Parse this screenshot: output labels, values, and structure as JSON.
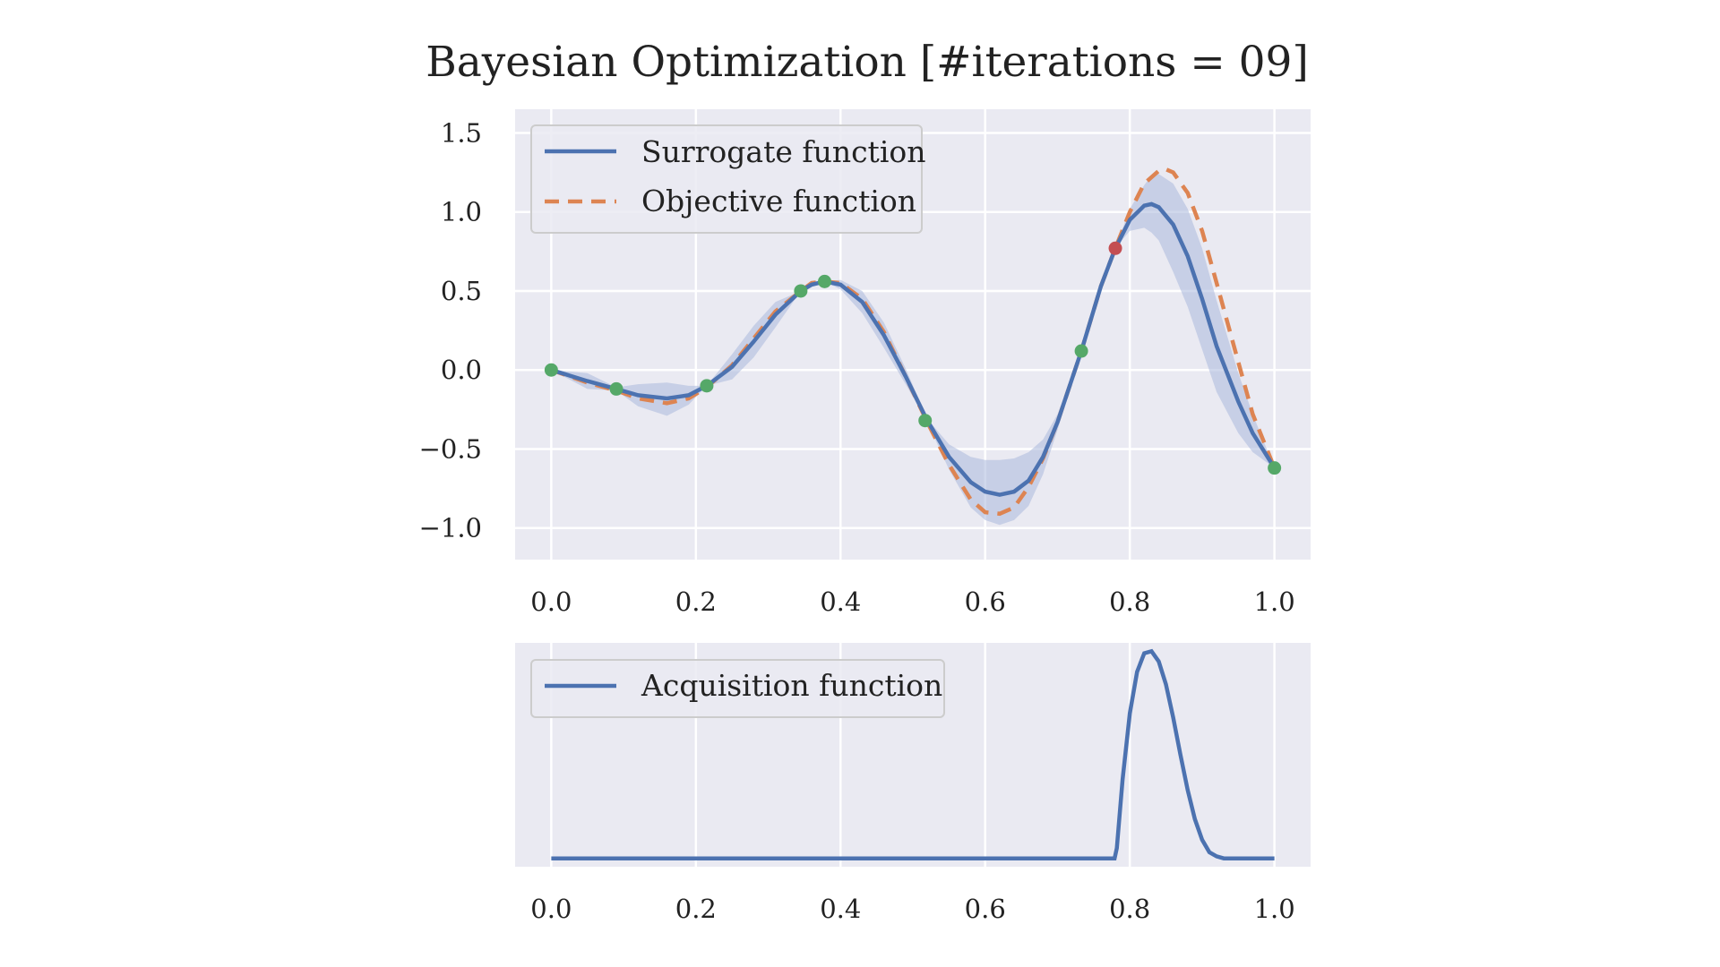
{
  "title": "Bayesian Optimization [#iterations = 09]",
  "colors": {
    "panel_bg": "#eaeaf2",
    "grid": "#ffffff",
    "surrogate": "#4c72b0",
    "objective": "#dd8452",
    "observed": "#55a868",
    "next_sample": "#c44e52",
    "band": "#a9b8dd"
  },
  "chart_data": [
    {
      "type": "line",
      "panel": "top",
      "xlim": [
        -0.05,
        1.05
      ],
      "ylim": [
        -1.2,
        1.65
      ],
      "xticks": [
        "0.0",
        "0.2",
        "0.4",
        "0.6",
        "0.8",
        "1.0"
      ],
      "yticks": [
        "1.5",
        "1.0",
        "0.5",
        "0.0",
        "−0.5",
        "−1.0"
      ],
      "grid": true,
      "legend_position": "upper-left",
      "series": [
        {
          "name": "Surrogate function",
          "style": "solid",
          "x": [
            0.0,
            0.05,
            0.09,
            0.12,
            0.16,
            0.19,
            0.215,
            0.25,
            0.28,
            0.31,
            0.345,
            0.36,
            0.378,
            0.4,
            0.43,
            0.46,
            0.49,
            0.52,
            0.55,
            0.58,
            0.6,
            0.62,
            0.64,
            0.66,
            0.68,
            0.7,
            0.733,
            0.76,
            0.78,
            0.8,
            0.82,
            0.83,
            0.84,
            0.86,
            0.88,
            0.9,
            0.92,
            0.95,
            0.97,
            1.0
          ],
          "y": [
            0.0,
            -0.07,
            -0.12,
            -0.16,
            -0.18,
            -0.16,
            -0.1,
            0.02,
            0.18,
            0.35,
            0.5,
            0.54,
            0.56,
            0.54,
            0.43,
            0.22,
            -0.04,
            -0.32,
            -0.55,
            -0.71,
            -0.77,
            -0.79,
            -0.77,
            -0.7,
            -0.55,
            -0.33,
            0.12,
            0.53,
            0.77,
            0.95,
            1.04,
            1.05,
            1.03,
            0.92,
            0.72,
            0.45,
            0.15,
            -0.2,
            -0.4,
            -0.62
          ]
        },
        {
          "name": "Objective function",
          "style": "dashed",
          "x": [
            0.0,
            0.05,
            0.09,
            0.12,
            0.16,
            0.19,
            0.215,
            0.25,
            0.28,
            0.31,
            0.345,
            0.36,
            0.378,
            0.4,
            0.43,
            0.46,
            0.49,
            0.52,
            0.55,
            0.58,
            0.6,
            0.62,
            0.64,
            0.66,
            0.68,
            0.7,
            0.733,
            0.76,
            0.78,
            0.8,
            0.82,
            0.84,
            0.85,
            0.86,
            0.88,
            0.9,
            0.92,
            0.95,
            0.97,
            1.0
          ],
          "y": [
            0.0,
            -0.08,
            -0.13,
            -0.18,
            -0.21,
            -0.18,
            -0.11,
            0.03,
            0.2,
            0.37,
            0.5,
            0.55,
            0.56,
            0.55,
            0.45,
            0.24,
            -0.04,
            -0.33,
            -0.6,
            -0.82,
            -0.9,
            -0.91,
            -0.87,
            -0.74,
            -0.56,
            -0.33,
            0.12,
            0.53,
            0.77,
            1.0,
            1.18,
            1.26,
            1.27,
            1.25,
            1.12,
            0.88,
            0.55,
            0.05,
            -0.28,
            -0.62
          ]
        }
      ],
      "uncertainty_band": {
        "x": [
          0.0,
          0.05,
          0.09,
          0.12,
          0.16,
          0.19,
          0.215,
          0.25,
          0.28,
          0.31,
          0.345,
          0.36,
          0.378,
          0.4,
          0.43,
          0.46,
          0.49,
          0.52,
          0.55,
          0.58,
          0.6,
          0.62,
          0.64,
          0.66,
          0.68,
          0.7,
          0.733,
          0.76,
          0.78,
          0.8,
          0.82,
          0.83,
          0.84,
          0.86,
          0.88,
          0.9,
          0.92,
          0.95,
          0.97,
          1.0
        ],
        "lower": [
          0.0,
          -0.12,
          -0.13,
          -0.23,
          -0.29,
          -0.22,
          -0.1,
          -0.06,
          0.08,
          0.27,
          0.5,
          0.53,
          0.56,
          0.51,
          0.36,
          0.14,
          -0.09,
          -0.33,
          -0.63,
          -0.87,
          -0.95,
          -0.98,
          -0.95,
          -0.86,
          -0.66,
          -0.38,
          0.12,
          0.51,
          0.77,
          0.88,
          0.9,
          0.87,
          0.82,
          0.62,
          0.4,
          0.13,
          -0.14,
          -0.4,
          -0.52,
          -0.62
        ],
        "upper": [
          0.0,
          -0.02,
          -0.11,
          -0.09,
          -0.08,
          -0.1,
          -0.1,
          0.1,
          0.28,
          0.43,
          0.5,
          0.55,
          0.56,
          0.57,
          0.5,
          0.3,
          0.01,
          -0.31,
          -0.47,
          -0.55,
          -0.57,
          -0.57,
          -0.56,
          -0.52,
          -0.44,
          -0.28,
          0.12,
          0.55,
          0.77,
          1.02,
          1.17,
          1.23,
          1.24,
          1.18,
          1.02,
          0.77,
          0.44,
          -0.02,
          -0.28,
          -0.62
        ]
      },
      "observed_points": {
        "x": [
          0.0,
          0.09,
          0.215,
          0.345,
          0.378,
          0.517,
          0.733,
          1.0
        ],
        "y": [
          0.0,
          -0.12,
          -0.1,
          0.5,
          0.56,
          -0.32,
          0.12,
          -0.62
        ]
      },
      "next_sample": {
        "x": 0.78,
        "y": 0.77
      }
    },
    {
      "type": "line",
      "panel": "bottom",
      "xlim": [
        -0.05,
        1.05
      ],
      "ylim": [
        -0.04,
        1.04
      ],
      "xticks": [
        "0.0",
        "0.2",
        "0.4",
        "0.6",
        "0.8",
        "1.0"
      ],
      "yticks": [],
      "grid": true,
      "legend_position": "upper-left",
      "series": [
        {
          "name": "Acquisition function",
          "style": "solid",
          "x": [
            0.0,
            0.779,
            0.782,
            0.79,
            0.8,
            0.81,
            0.82,
            0.83,
            0.84,
            0.85,
            0.86,
            0.87,
            0.88,
            0.89,
            0.9,
            0.91,
            0.92,
            0.93,
            0.94,
            1.0
          ],
          "y": [
            0.0,
            0.0,
            0.05,
            0.38,
            0.7,
            0.9,
            0.99,
            1.0,
            0.95,
            0.84,
            0.68,
            0.5,
            0.33,
            0.19,
            0.09,
            0.03,
            0.01,
            0.0,
            0.0,
            0.0
          ]
        }
      ]
    }
  ]
}
